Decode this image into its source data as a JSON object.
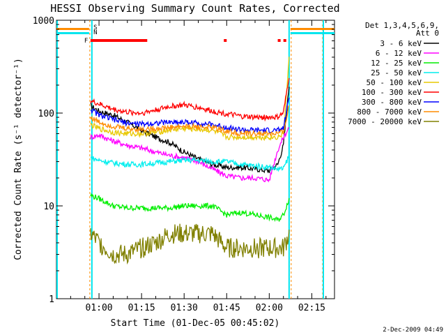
{
  "chart_data": {
    "type": "line",
    "title": "HESSI Observing Summary Count Rates, Corrected",
    "xlabel": "Start Time (01-Dec-05 00:45:02)",
    "ylabel": "Corrected Count Rate (s⁻¹ detector⁻¹)",
    "yscale": "log",
    "xlim": [
      "00:45",
      "02:23"
    ],
    "ylim": [
      1,
      1000
    ],
    "x_ticks": [
      "01:00",
      "01:15",
      "01:30",
      "01:45",
      "02:00",
      "02:15"
    ],
    "y_ticks": [
      "1",
      "10",
      "100",
      "1000"
    ],
    "grid": false,
    "legend_position": "right",
    "legend_title": [
      "Det 1,3,4,5,6,9,",
      "Att 0"
    ],
    "timestamp": "2-Dec-2009 04:49",
    "data_interval": [
      "00:57",
      "02:07"
    ],
    "night_markers": [
      {
        "label": "S",
        "time": "00:57",
        "color": "#ff7f00"
      },
      {
        "label": "N",
        "time": "00:57",
        "color": "#00e5ee"
      }
    ],
    "flare_label": "F",
    "flare_bars": [
      [
        "00:57",
        "01:17"
      ],
      [
        "01:44",
        "01:45"
      ],
      [
        "02:03",
        "02:04"
      ],
      [
        "02:05",
        "02:06"
      ]
    ],
    "x": [
      "00:57",
      "01:00",
      "01:05",
      "01:10",
      "01:15",
      "01:20",
      "01:25",
      "01:30",
      "01:35",
      "01:40",
      "01:45",
      "01:50",
      "01:55",
      "02:00",
      "02:03",
      "02:05",
      "02:07"
    ],
    "series": [
      {
        "name": "3 - 6 keV",
        "color": "#000000",
        "values": [
          120,
          105,
          95,
          80,
          65,
          55,
          48,
          38,
          32,
          28,
          26,
          26,
          25,
          24,
          28,
          45,
          200
        ]
      },
      {
        "name": "6 - 12 keV",
        "color": "#ff00ff",
        "values": [
          55,
          58,
          50,
          45,
          42,
          38,
          35,
          33,
          30,
          25,
          21,
          20,
          20,
          19,
          40,
          55,
          70
        ]
      },
      {
        "name": "12 - 25 keV",
        "color": "#00ee00",
        "values": [
          13,
          12,
          10,
          9.5,
          9.5,
          9.5,
          9.5,
          10,
          10,
          10,
          8,
          8.5,
          8,
          7.5,
          7,
          8,
          12
        ]
      },
      {
        "name": "25 - 50 keV",
        "color": "#00eeee",
        "values": [
          33,
          31,
          29,
          28,
          28,
          29,
          30,
          31,
          31,
          30,
          30,
          28,
          27,
          26,
          25,
          25,
          35
        ]
      },
      {
        "name": "50 - 100 keV",
        "color": "#e8c800",
        "values": [
          75,
          68,
          62,
          60,
          60,
          62,
          66,
          68,
          67,
          65,
          55,
          55,
          55,
          55,
          55,
          60,
          380
        ]
      },
      {
        "name": "100 - 300 keV",
        "color": "#ff0000",
        "values": [
          135,
          125,
          110,
          102,
          100,
          108,
          118,
          122,
          115,
          105,
          98,
          92,
          90,
          90,
          90,
          100,
          250
        ]
      },
      {
        "name": "300 - 800 keV",
        "color": "#0000ff",
        "values": [
          110,
          95,
          85,
          78,
          76,
          78,
          80,
          80,
          78,
          75,
          70,
          66,
          65,
          65,
          65,
          68,
          150
        ]
      },
      {
        "name": "800 - 7000 keV",
        "color": "#ff8c00",
        "values": [
          90,
          80,
          72,
          68,
          67,
          68,
          70,
          72,
          71,
          70,
          64,
          60,
          60,
          60,
          60,
          62,
          120
        ]
      },
      {
        "name": "7000 - 20000 keV",
        "color": "#808000",
        "values": [
          5,
          4,
          3,
          3,
          3.5,
          4,
          5,
          5,
          5,
          5,
          3.5,
          3.5,
          3.5,
          3.5,
          3.5,
          3.5,
          5
        ]
      }
    ]
  }
}
